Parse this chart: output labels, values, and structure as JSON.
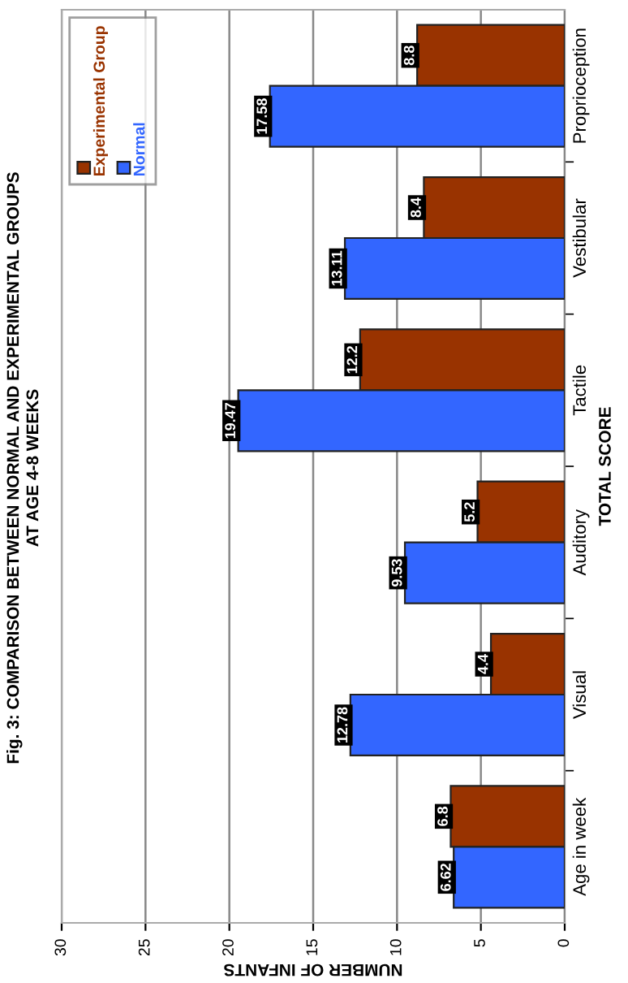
{
  "chart_data": {
    "type": "bar",
    "orientation": "horizontal",
    "title": "Fig. 3: COMPARISON BETWEEN NORMAL AND EXPERIMENTAL GROUPS",
    "subtitle": "AT AGE 4-8 WEEKS",
    "xlabel": "NUMBER OF INFANTS",
    "ylabel": "TOTAL SCORE",
    "categories": [
      "Proprioception",
      "Vestibular",
      "Tactile",
      "Auditory",
      "Visual",
      "Age in week"
    ],
    "series": [
      {
        "name": "Experimental Group",
        "color": "#993300",
        "values": [
          8.8,
          8.4,
          12.2,
          5.2,
          4.4,
          6.8
        ]
      },
      {
        "name": "Normal",
        "color": "#3366ff",
        "values": [
          17.58,
          13.11,
          19.47,
          9.53,
          12.78,
          6.62
        ]
      }
    ],
    "xlim": [
      30,
      0
    ],
    "xticks": [
      30,
      25,
      20,
      15,
      10,
      5,
      0
    ],
    "grid": "x",
    "legend": "top left",
    "data_labels": true
  }
}
